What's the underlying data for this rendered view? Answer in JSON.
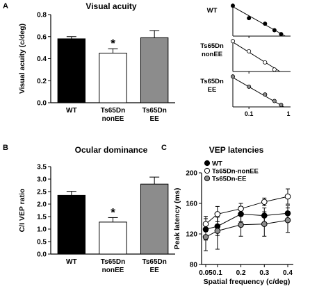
{
  "chart_data": [
    {
      "panel": "A",
      "type": "bar",
      "title": "Visual acuity",
      "ylabel": "Visual acuity (c/deg)",
      "ylim": [
        0,
        0.8
      ],
      "yticks": [
        0,
        0.2,
        0.4,
        0.6,
        0.8
      ],
      "ytick_labels": [
        "0.0",
        "0.2",
        "0.4",
        "0.6",
        "0.8"
      ],
      "categories": [
        [
          "WT"
        ],
        [
          "Ts65Dn",
          "nonEE"
        ],
        [
          "Ts65Dn",
          "EE"
        ]
      ],
      "values": [
        0.58,
        0.45,
        0.59
      ],
      "errors": [
        0.02,
        0.04,
        0.065
      ],
      "fills": [
        "#000000",
        "#ffffff",
        "#8c8c8c"
      ],
      "asterisk": "*",
      "asterisk_bar": 1
    },
    {
      "panel": "A-insets",
      "type": "scatter",
      "insets": [
        {
          "label": [
            "WT"
          ],
          "x": [
            0.05,
            0.1,
            0.2,
            0.3,
            0.4
          ],
          "y": [
            0.93,
            0.55,
            0.38,
            0.18,
            0.06
          ],
          "line": [
            [
              0.05,
              0.9
            ],
            [
              0.48,
              0.0
            ]
          ],
          "fill": "#000000"
        },
        {
          "label": [
            "Ts65Dn",
            "nonEE"
          ],
          "x": [
            0.05,
            0.1,
            0.2,
            0.3
          ],
          "y": [
            0.93,
            0.62,
            0.28,
            0.06
          ],
          "line": [
            [
              0.05,
              0.9
            ],
            [
              0.38,
              0.0
            ]
          ],
          "fill": "#ffffff"
        },
        {
          "label": [
            "Ts65Dn",
            "EE"
          ],
          "x": [
            0.05,
            0.1,
            0.2,
            0.3,
            0.4
          ],
          "y": [
            0.93,
            0.62,
            0.38,
            0.18,
            0.06
          ],
          "line": [
            [
              0.05,
              0.9
            ],
            [
              0.45,
              0.0
            ]
          ],
          "fill": "#8c8c8c"
        }
      ],
      "xtick_labels": [
        "0.1",
        "1"
      ],
      "xscale": "log"
    },
    {
      "panel": "B",
      "type": "bar",
      "title": "Ocular dominance",
      "ylabel": "C/I VEP ratio",
      "ylim": [
        0,
        3.5
      ],
      "yticks": [
        0,
        0.5,
        1,
        1.5,
        2,
        2.5,
        3,
        3.5
      ],
      "ytick_labels": [
        "0.0",
        "0.5",
        "1.0",
        "1.5",
        "2.0",
        "2.5",
        "3.0",
        "3.5"
      ],
      "categories": [
        [
          "WT"
        ],
        [
          "Ts65Dn",
          "nonEE"
        ],
        [
          "Ts65Dn",
          "EE"
        ]
      ],
      "values": [
        2.35,
        1.28,
        2.8
      ],
      "errors": [
        0.16,
        0.18,
        0.28
      ],
      "fills": [
        "#000000",
        "#ffffff",
        "#8c8c8c"
      ],
      "asterisk": "*",
      "asterisk_bar": 1
    },
    {
      "panel": "C",
      "type": "line",
      "title": "VEP latencies",
      "xlabel": "Spatial frequency (c/deg)",
      "ylabel": "Peak latency (ms)",
      "ylim": [
        80,
        200
      ],
      "yticks": [
        80,
        120,
        160,
        200
      ],
      "xlim": [
        0.05,
        0.4
      ],
      "x": [
        0.05,
        0.1,
        0.2,
        0.3,
        0.4
      ],
      "xtick_labels": [
        "0.05",
        "0.1",
        "0.2",
        "0.3",
        "0.4"
      ],
      "series": [
        {
          "name": "WT",
          "fill": "#000000",
          "values": [
            126,
            130,
            146,
            144,
            147
          ],
          "errors": [
            14,
            12,
            10,
            10,
            10
          ]
        },
        {
          "name": "Ts65Dn-nonEE",
          "fill": "#ffffff",
          "values": [
            133,
            146,
            153,
            162,
            169
          ],
          "errors": [
            10,
            10,
            7,
            5,
            10
          ]
        },
        {
          "name": "Ts65Dn-EE",
          "fill": "#8c8c8c",
          "values": [
            116,
            124,
            132,
            133,
            138
          ],
          "errors": [
            18,
            24,
            15,
            16,
            16
          ]
        }
      ],
      "legend": "top-left"
    }
  ],
  "panel_labels": [
    "A",
    "B",
    "C"
  ]
}
